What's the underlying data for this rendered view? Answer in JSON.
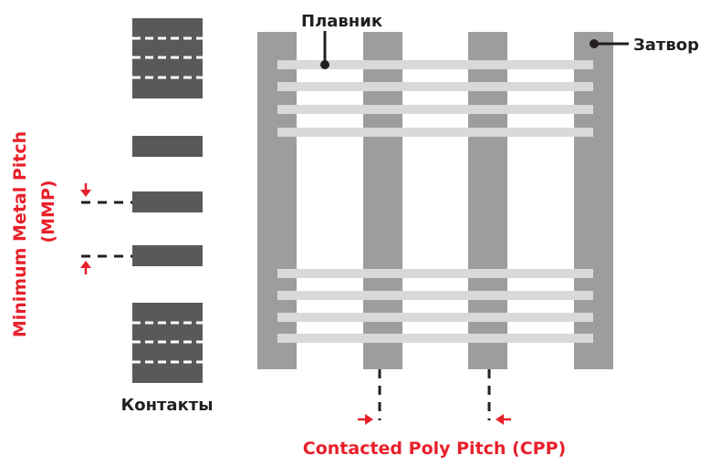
{
  "labels": {
    "fin": "Плавник",
    "gate": "Затвор",
    "contacts": "Контакты",
    "mmp_line1": "Minimum Metal Pitch",
    "mmp_line2": "(MMP)",
    "cpp": "Contacted Poly Pitch (CPP)"
  },
  "colors": {
    "gate": "#9d9d9d",
    "fin": "#d9d9d9",
    "contact": "#595959",
    "accent": "#e8202a",
    "line": "#231f20"
  }
}
